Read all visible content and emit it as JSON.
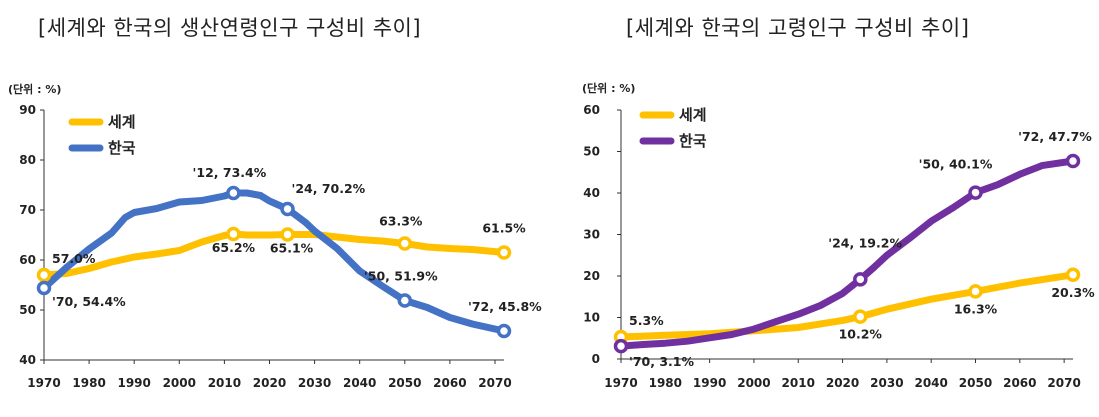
{
  "chart_data": [
    {
      "type": "line",
      "title": "[세계와 한국의 생산연령인구 구성비 추이]",
      "unit_label": "(단위 : %)",
      "xlabel": "",
      "ylabel": "",
      "xlim": [
        1970,
        2072
      ],
      "ylim": [
        40,
        90
      ],
      "x_ticks": [
        1970,
        1980,
        1990,
        2000,
        2010,
        2020,
        2030,
        2040,
        2050,
        2060,
        2070
      ],
      "y_ticks": [
        40,
        50,
        60,
        70,
        80,
        90
      ],
      "legend_position": "top-left",
      "series": [
        {
          "name": "세계",
          "color": "#FFC000",
          "x": [
            1970,
            1975,
            1980,
            1985,
            1990,
            1995,
            2000,
            2005,
            2010,
            2012,
            2015,
            2020,
            2024,
            2030,
            2035,
            2040,
            2045,
            2050,
            2055,
            2060,
            2065,
            2072
          ],
          "values": [
            57.0,
            57.3,
            58.3,
            59.6,
            60.6,
            61.2,
            61.9,
            63.6,
            64.9,
            65.2,
            65.0,
            65.0,
            65.1,
            65.1,
            64.6,
            64.1,
            63.8,
            63.3,
            62.6,
            62.3,
            62.1,
            61.5
          ]
        },
        {
          "name": "한국",
          "color": "#4472C4",
          "x": [
            1970,
            1975,
            1980,
            1985,
            1988,
            1990,
            1995,
            2000,
            2005,
            2010,
            2012,
            2015,
            2018,
            2020,
            2024,
            2028,
            2030,
            2035,
            2040,
            2045,
            2050,
            2055,
            2060,
            2065,
            2072
          ],
          "values": [
            54.4,
            58.5,
            62.2,
            65.4,
            68.5,
            69.5,
            70.3,
            71.6,
            71.9,
            72.8,
            73.4,
            73.4,
            72.9,
            71.8,
            70.2,
            67.5,
            65.8,
            62.3,
            57.8,
            54.8,
            51.9,
            50.5,
            48.5,
            47.2,
            45.8
          ]
        }
      ],
      "annotations": [
        {
          "series": "세계",
          "x": 1970,
          "y": 57.0,
          "label": "57.0%"
        },
        {
          "series": "세계",
          "x": 2012,
          "y": 65.2,
          "label": "65.2%"
        },
        {
          "series": "세계",
          "x": 2024,
          "y": 65.1,
          "label": "65.1%"
        },
        {
          "series": "세계",
          "x": 2050,
          "y": 63.3,
          "label": "63.3%"
        },
        {
          "series": "세계",
          "x": 2072,
          "y": 61.5,
          "label": "61.5%"
        },
        {
          "series": "한국",
          "x": 1970,
          "y": 54.4,
          "label": "'70, 54.4%"
        },
        {
          "series": "한국",
          "x": 2012,
          "y": 73.4,
          "label": "'12, 73.4%"
        },
        {
          "series": "한국",
          "x": 2024,
          "y": 70.2,
          "label": "'24, 70.2%"
        },
        {
          "series": "한국",
          "x": 2050,
          "y": 51.9,
          "label": "'50, 51.9%"
        },
        {
          "series": "한국",
          "x": 2072,
          "y": 45.8,
          "label": "'72, 45.8%"
        }
      ]
    },
    {
      "type": "line",
      "title": "[세계와 한국의 고령인구 구성비 추이]",
      "unit_label": "(단위 : %)",
      "xlabel": "",
      "ylabel": "",
      "xlim": [
        1970,
        2072
      ],
      "ylim": [
        0,
        60
      ],
      "x_ticks": [
        1970,
        1980,
        1990,
        2000,
        2010,
        2020,
        2030,
        2040,
        2050,
        2060,
        2070
      ],
      "y_ticks": [
        0,
        10,
        20,
        30,
        40,
        50,
        60
      ],
      "legend_position": "top-left",
      "series": [
        {
          "name": "세계",
          "color": "#FFC000",
          "x": [
            1970,
            1980,
            1990,
            2000,
            2010,
            2020,
            2024,
            2030,
            2040,
            2050,
            2060,
            2072
          ],
          "values": [
            5.3,
            5.7,
            6.1,
            6.8,
            7.6,
            9.3,
            10.2,
            12.0,
            14.4,
            16.3,
            18.3,
            20.3
          ]
        },
        {
          "name": "한국",
          "color": "#7030A0",
          "x": [
            1970,
            1975,
            1980,
            1985,
            1990,
            1995,
            2000,
            2005,
            2010,
            2015,
            2020,
            2024,
            2027,
            2030,
            2035,
            2040,
            2045,
            2050,
            2055,
            2060,
            2065,
            2072
          ],
          "values": [
            3.1,
            3.5,
            3.8,
            4.3,
            5.1,
            5.9,
            7.2,
            9.0,
            10.8,
            12.9,
            15.8,
            19.2,
            22.0,
            25.0,
            29.0,
            33.2,
            36.5,
            40.1,
            42.0,
            44.5,
            46.6,
            47.7
          ]
        }
      ],
      "annotations": [
        {
          "series": "세계",
          "x": 1970,
          "y": 5.3,
          "label": "5.3%"
        },
        {
          "series": "세계",
          "x": 2024,
          "y": 10.2,
          "label": "10.2%"
        },
        {
          "series": "세계",
          "x": 2050,
          "y": 16.3,
          "label": "16.3%"
        },
        {
          "series": "세계",
          "x": 2072,
          "y": 20.3,
          "label": "20.3%"
        },
        {
          "series": "한국",
          "x": 1970,
          "y": 3.1,
          "label": "'70, 3.1%"
        },
        {
          "series": "한국",
          "x": 2024,
          "y": 19.2,
          "label": "'24, 19.2%"
        },
        {
          "series": "한국",
          "x": 2050,
          "y": 40.1,
          "label": "'50, 40.1%"
        },
        {
          "series": "한국",
          "x": 2072,
          "y": 47.7,
          "label": "'72, 47.7%"
        }
      ]
    }
  ]
}
